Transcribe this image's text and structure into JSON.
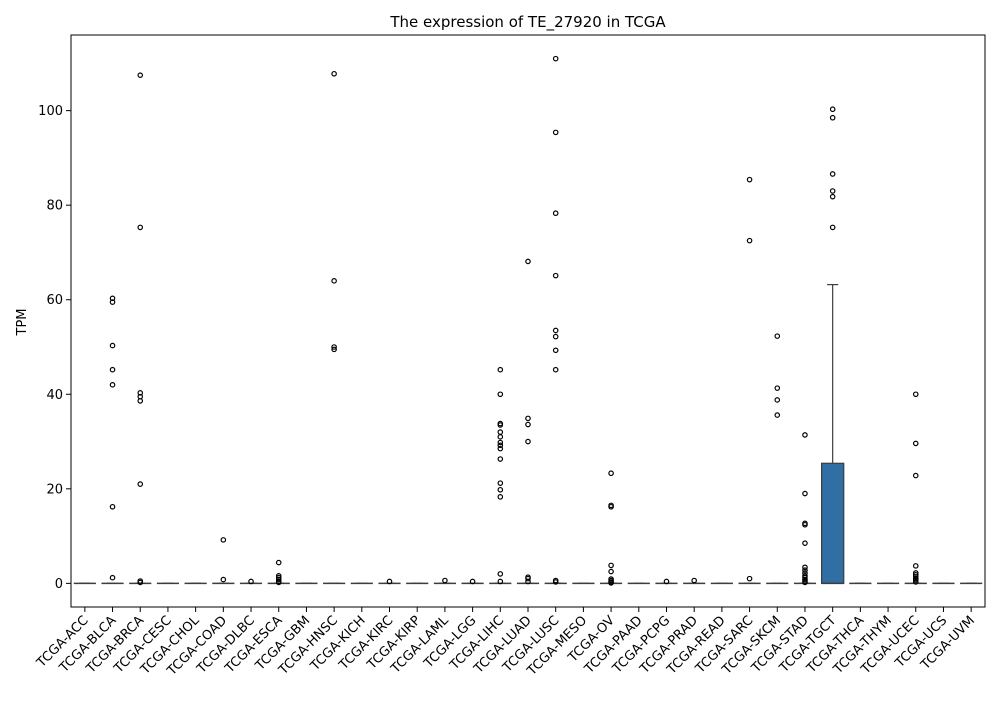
{
  "chart_data": {
    "type": "box",
    "title": "The expression of TE_27920 in TCGA",
    "xlabel": "",
    "ylabel": "TPM",
    "ylim": [
      -5,
      116
    ],
    "yticks": [
      0,
      20,
      40,
      60,
      80,
      100
    ],
    "grid": false,
    "box_color": "#2f6fa3",
    "categories": [
      "TCGA-ACC",
      "TCGA-BLCA",
      "TCGA-BRCA",
      "TCGA-CESC",
      "TCGA-CHOL",
      "TCGA-COAD",
      "TCGA-DLBC",
      "TCGA-ESCA",
      "TCGA-GBM",
      "TCGA-HNSC",
      "TCGA-KICH",
      "TCGA-KIRC",
      "TCGA-KIRP",
      "TCGA-LAML",
      "TCGA-LGG",
      "TCGA-LIHC",
      "TCGA-LUAD",
      "TCGA-LUSC",
      "TCGA-MESO",
      "TCGA-OV",
      "TCGA-PAAD",
      "TCGA-PCPG",
      "TCGA-PRAD",
      "TCGA-READ",
      "TCGA-SARC",
      "TCGA-SKCM",
      "TCGA-STAD",
      "TCGA-TGCT",
      "TCGA-THCA",
      "TCGA-THYM",
      "TCGA-UCEC",
      "TCGA-UCS",
      "TCGA-UVM"
    ],
    "boxes": [
      {
        "q1": 0,
        "median": 0,
        "q3": 0,
        "whisker_low": 0,
        "whisker_high": 0,
        "outliers": []
      },
      {
        "q1": 0,
        "median": 0,
        "q3": 0,
        "whisker_low": 0,
        "whisker_high": 0,
        "outliers": [
          1.2,
          16.2,
          42,
          45.2,
          50.3,
          59.5,
          60.3
        ]
      },
      {
        "q1": 0,
        "median": 0,
        "q3": 0,
        "whisker_low": 0,
        "whisker_high": 0,
        "outliers": [
          0.2,
          0.5,
          21,
          38.6,
          39.5,
          40.3,
          75.3,
          107.5
        ]
      },
      {
        "q1": 0,
        "median": 0,
        "q3": 0,
        "whisker_low": 0,
        "whisker_high": 0,
        "outliers": []
      },
      {
        "q1": 0,
        "median": 0,
        "q3": 0,
        "whisker_low": 0,
        "whisker_high": 0,
        "outliers": []
      },
      {
        "q1": 0,
        "median": 0,
        "q3": 0,
        "whisker_low": 0,
        "whisker_high": 0,
        "outliers": [
          0.8,
          9.2
        ]
      },
      {
        "q1": 0,
        "median": 0,
        "q3": 0,
        "whisker_low": 0,
        "whisker_high": 0,
        "outliers": [
          0.4
        ]
      },
      {
        "q1": 0,
        "median": 0,
        "q3": 0,
        "whisker_low": 0,
        "whisker_high": 0,
        "outliers": [
          0.2,
          0.4,
          0.8,
          1.2,
          1.6,
          4.4
        ]
      },
      {
        "q1": 0,
        "median": 0,
        "q3": 0,
        "whisker_low": 0,
        "whisker_high": 0,
        "outliers": []
      },
      {
        "q1": 0,
        "median": 0,
        "q3": 0,
        "whisker_low": 0,
        "whisker_high": 0,
        "outliers": [
          49.5,
          50,
          64,
          107.8
        ]
      },
      {
        "q1": 0,
        "median": 0,
        "q3": 0,
        "whisker_low": 0,
        "whisker_high": 0,
        "outliers": []
      },
      {
        "q1": 0,
        "median": 0,
        "q3": 0,
        "whisker_low": 0,
        "whisker_high": 0,
        "outliers": [
          0.4
        ]
      },
      {
        "q1": 0,
        "median": 0,
        "q3": 0,
        "whisker_low": 0,
        "whisker_high": 0,
        "outliers": []
      },
      {
        "q1": 0,
        "median": 0,
        "q3": 0,
        "whisker_low": 0,
        "whisker_high": 0,
        "outliers": [
          0.6
        ]
      },
      {
        "q1": 0,
        "median": 0,
        "q3": 0,
        "whisker_low": 0,
        "whisker_high": 0,
        "outliers": [
          0.4
        ]
      },
      {
        "q1": 0,
        "median": 0,
        "q3": 0,
        "whisker_low": 0,
        "whisker_high": 0,
        "outliers": [
          0.4,
          2,
          18.3,
          19.8,
          21.2,
          26.3,
          28.5,
          29.2,
          29.8,
          31,
          32,
          33.5,
          33.8,
          40,
          45.2
        ]
      },
      {
        "q1": 0,
        "median": 0,
        "q3": 0,
        "whisker_low": 0,
        "whisker_high": 0,
        "outliers": [
          0.4,
          1,
          1.3,
          30,
          33.6,
          34.9,
          68.1
        ]
      },
      {
        "q1": 0,
        "median": 0,
        "q3": 0,
        "whisker_low": 0,
        "whisker_high": 0,
        "outliers": [
          0.3,
          0.6,
          45.2,
          49.3,
          52.2,
          53.5,
          65.1,
          78.3,
          95.4,
          111
        ]
      },
      {
        "q1": 0,
        "median": 0,
        "q3": 0,
        "whisker_low": 0,
        "whisker_high": 0,
        "outliers": []
      },
      {
        "q1": 0,
        "median": 0,
        "q3": 0,
        "whisker_low": 0,
        "whisker_high": 0,
        "outliers": [
          0.1,
          0.3,
          0.6,
          0.9,
          2.5,
          3.8,
          16.2,
          16.5,
          23.3
        ]
      },
      {
        "q1": 0,
        "median": 0,
        "q3": 0,
        "whisker_low": 0,
        "whisker_high": 0,
        "outliers": []
      },
      {
        "q1": 0,
        "median": 0,
        "q3": 0,
        "whisker_low": 0,
        "whisker_high": 0,
        "outliers": [
          0.4
        ]
      },
      {
        "q1": 0,
        "median": 0,
        "q3": 0,
        "whisker_low": 0,
        "whisker_high": 0,
        "outliers": [
          0.6
        ]
      },
      {
        "q1": 0,
        "median": 0,
        "q3": 0,
        "whisker_low": 0,
        "whisker_high": 0,
        "outliers": []
      },
      {
        "q1": 0,
        "median": 0,
        "q3": 0,
        "whisker_low": 0,
        "whisker_high": 0,
        "outliers": [
          1,
          72.5,
          85.4
        ]
      },
      {
        "q1": 0,
        "median": 0,
        "q3": 0,
        "whisker_low": 0,
        "whisker_high": 0,
        "outliers": [
          35.6,
          38.8,
          41.3,
          52.3
        ]
      },
      {
        "q1": 0,
        "median": 0,
        "q3": 0,
        "whisker_low": 0,
        "whisker_high": 0,
        "outliers": [
          0.2,
          0.5,
          0.8,
          1.2,
          1.6,
          2.2,
          2.8,
          3.4,
          8.5,
          12.4,
          12.7,
          19,
          31.4
        ]
      },
      {
        "q1": 0,
        "median": 0,
        "q3": 25.4,
        "whisker_low": 0,
        "whisker_high": 63.2,
        "outliers": [
          75.3,
          81.8,
          83,
          86.6,
          98.5,
          100.3
        ]
      },
      {
        "q1": 0,
        "median": 0,
        "q3": 0,
        "whisker_low": 0,
        "whisker_high": 0,
        "outliers": []
      },
      {
        "q1": 0,
        "median": 0,
        "q3": 0,
        "whisker_low": 0,
        "whisker_high": 0,
        "outliers": []
      },
      {
        "q1": 0,
        "median": 0,
        "q3": 0,
        "whisker_low": 0,
        "whisker_high": 0,
        "outliers": [
          0.3,
          0.7,
          1,
          1.4,
          1.8,
          2.2,
          3.7,
          22.8,
          29.6,
          40
        ]
      },
      {
        "q1": 0,
        "median": 0,
        "q3": 0,
        "whisker_low": 0,
        "whisker_high": 0,
        "outliers": []
      },
      {
        "q1": 0,
        "median": 0,
        "q3": 0,
        "whisker_low": 0,
        "whisker_high": 0,
        "outliers": []
      }
    ]
  }
}
